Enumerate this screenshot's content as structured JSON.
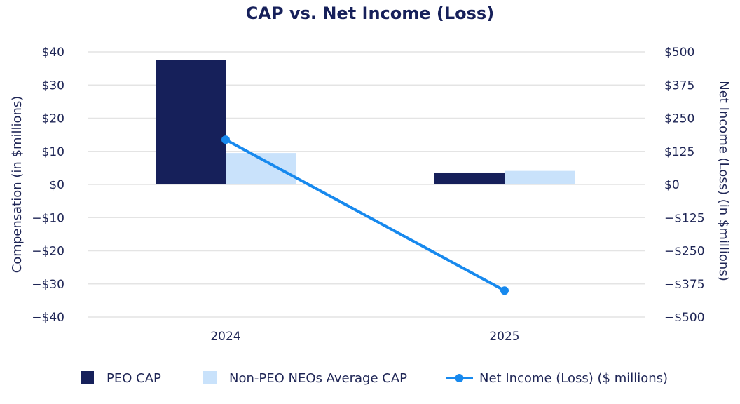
{
  "chart_data": {
    "type": "bar",
    "title": "CAP vs. Net Income (Loss)",
    "categories": [
      "2024",
      "2025"
    ],
    "series": [
      {
        "name": "PEO CAP",
        "kind": "bar",
        "axis": "left",
        "color": "#16205a",
        "values": [
          37.6,
          3.6
        ]
      },
      {
        "name": "Non-PEO NEOs Average CAP",
        "kind": "bar",
        "axis": "left",
        "color": "#c9e2fb",
        "values": [
          9.5,
          4.1
        ]
      },
      {
        "name": "Net Income (Loss) ($ millions)",
        "kind": "line",
        "axis": "right",
        "color": "#1789ee",
        "values": [
          169,
          -400
        ]
      }
    ],
    "left_axis": {
      "label": "Compensation (in $millions)",
      "range": [
        -40,
        40
      ],
      "ticks": [
        40,
        30,
        20,
        10,
        0,
        -10,
        -20,
        -30,
        -40
      ],
      "tick_labels": [
        "$40",
        "$30",
        "$20",
        "$10",
        "$0",
        "−$10",
        "−$20",
        "−$30",
        "−$40"
      ]
    },
    "right_axis": {
      "label": "Net Income (Loss) (in $millions)",
      "range": [
        -500,
        500
      ],
      "ticks": [
        500,
        375,
        250,
        125,
        0,
        -125,
        -250,
        -375,
        -500
      ],
      "tick_labels": [
        "$500",
        "$375",
        "$250",
        "$125",
        "$0",
        "−$125",
        "−$250",
        "−$375",
        "−$500"
      ]
    },
    "grid": true,
    "legend_position": "bottom"
  }
}
